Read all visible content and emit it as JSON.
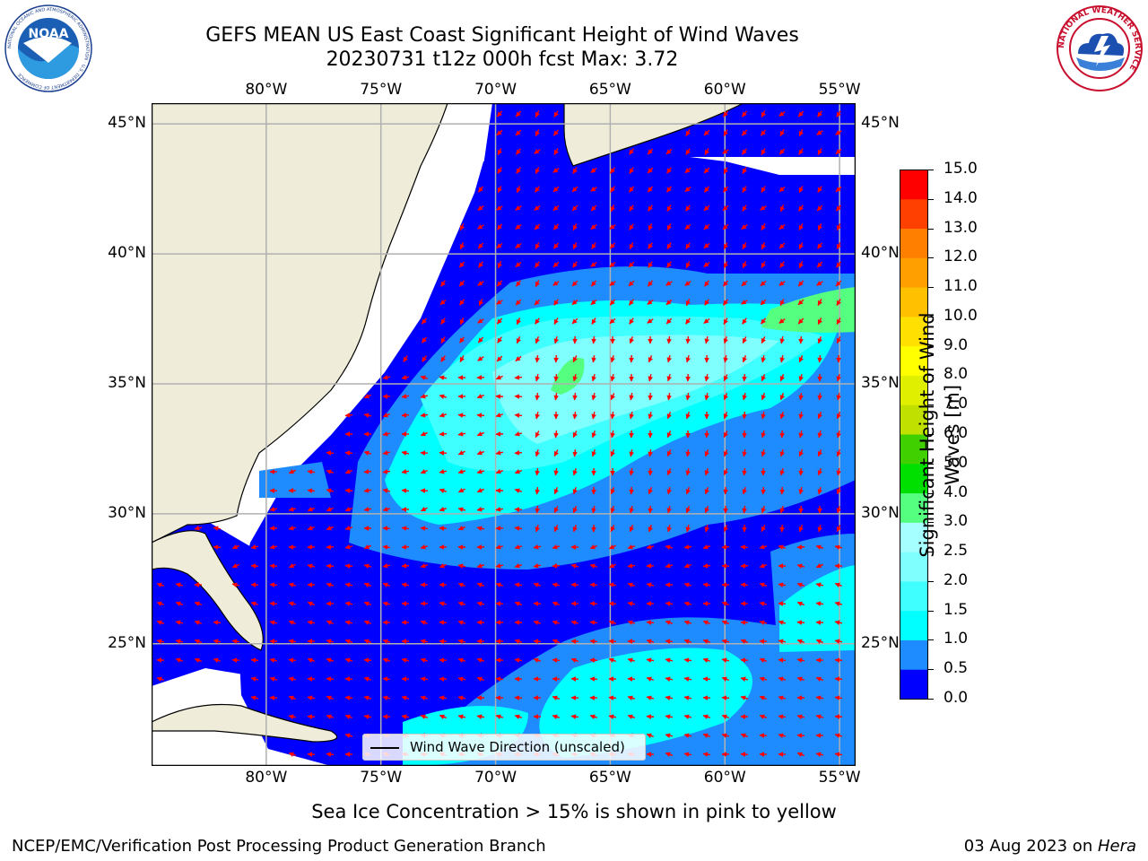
{
  "title": {
    "line1": "GEFS MEAN US East Coast Significant Height of Wind Waves",
    "line2": "20230731 t12z 000h fcst   Max: 3.72"
  },
  "logos": {
    "left": {
      "name": "noaa-logo",
      "text": "NOAA",
      "ring_text": "NATIONAL OCEANIC AND ATMOSPHERIC ADMINISTRATION · U.S. DEPARTMENT OF COMMERCE"
    },
    "right": {
      "name": "nws-logo",
      "ring_text": "NATIONAL WEATHER SERVICE"
    }
  },
  "map": {
    "lon_top": [
      "80°W",
      "75°W",
      "70°W",
      "65°W",
      "60°W",
      "55°W"
    ],
    "lon_bottom": [
      "80°W",
      "75°W",
      "70°W",
      "65°W",
      "60°W",
      "55°W"
    ],
    "lat_left": [
      "45°N",
      "40°N",
      "35°N",
      "30°N",
      "25°N"
    ],
    "lat_right": [
      "45°N",
      "40°N",
      "35°N",
      "30°N",
      "25°N"
    ],
    "lon_range": [
      -85,
      -54.3
    ],
    "lat_range": [
      20.3,
      45.8
    ],
    "grid": true,
    "colors": {
      "land": "#efedda",
      "ocean_empty": "#ffffff",
      "arrow": "#ff0000",
      "grid": "#b0b0b0"
    },
    "legend": {
      "label": "Wind Wave Direction (unscaled)"
    }
  },
  "colorbar": {
    "label": "Significant Height of Wind Waves [m]",
    "ticks": [
      "0.0",
      "0.5",
      "1.0",
      "1.5",
      "2.0",
      "2.5",
      "3.0",
      "4.0",
      "5.0",
      "6.0",
      "7.0",
      "8.0",
      "9.0",
      "10.0",
      "11.0",
      "12.0",
      "13.0",
      "14.0",
      "15.0"
    ],
    "colors": [
      "#0000ff",
      "#1e8cff",
      "#00ffff",
      "#40ffff",
      "#80ffff",
      "#a6ffff",
      "#55ff80",
      "#00e000",
      "#40d000",
      "#c0e000",
      "#e0ef00",
      "#ffff00",
      "#ffe000",
      "#ffc000",
      "#ffa000",
      "#ff8000",
      "#ff4000",
      "#ff0000"
    ]
  },
  "chart_data": {
    "type": "heatmap",
    "title": "GEFS MEAN US East Coast Significant Height of Wind Waves",
    "subtitle": "20230731 t12z 000h fcst   Max: 3.72",
    "xlabel": "",
    "ylabel": "",
    "value_label": "Significant Height of Wind Waves [m]",
    "max_value": 3.72,
    "x_ticks": [
      "80°W",
      "75°W",
      "70°W",
      "65°W",
      "60°W",
      "55°W"
    ],
    "y_ticks": [
      "45°N",
      "40°N",
      "35°N",
      "30°N",
      "25°N"
    ],
    "xlim": [
      -85,
      -54.3
    ],
    "ylim": [
      20.3,
      45.8
    ],
    "color_levels": [
      0.0,
      0.5,
      1.0,
      1.5,
      2.0,
      2.5,
      3.0,
      4.0,
      5.0,
      6.0,
      7.0,
      8.0,
      9.0,
      10.0,
      11.0,
      12.0,
      13.0,
      14.0,
      15.0
    ]
  },
  "footer": {
    "note": "Sea Ice Concentration > 15% is shown in pink to yellow",
    "left": "NCEP/EMC/Verification Post Processing Product Generation Branch",
    "right_prefix": "03 Aug 2023 on ",
    "right_host": "Hera"
  }
}
